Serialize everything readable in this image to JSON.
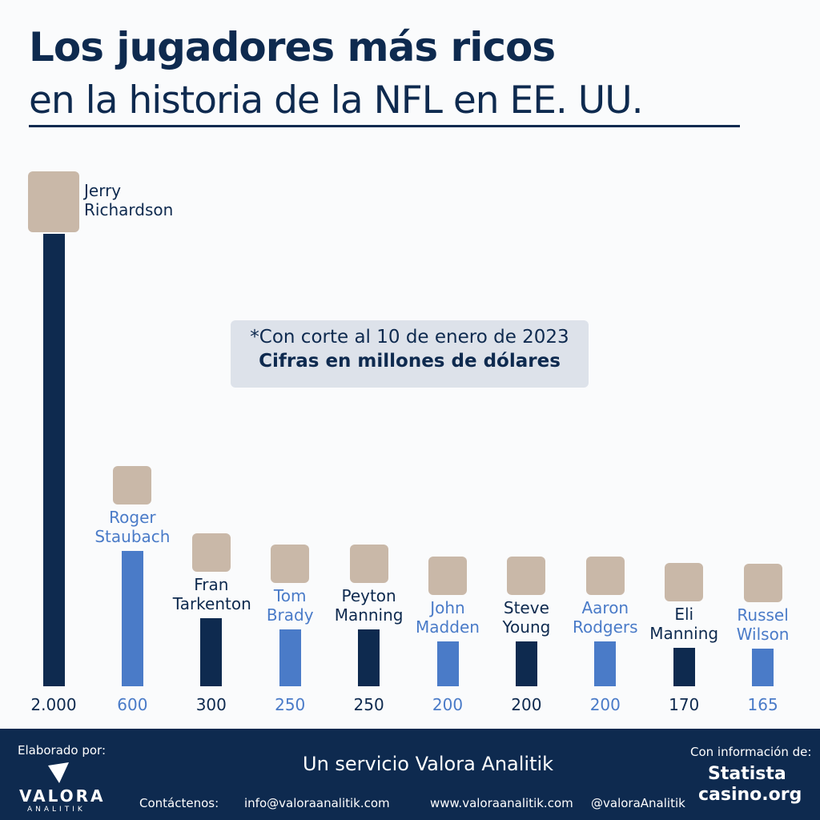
{
  "chart_data": {
    "type": "bar",
    "title": "Los jugadores más ricos",
    "subtitle": "en la historia de la NFL en EE. UU.",
    "notes": [
      "*Con corte al 10 de enero de 2023",
      "Cifras en millones de dólares"
    ],
    "categories": [
      "Jerry Richardson",
      "Roger Staubach",
      "Fran Tarkenton",
      "Tom Brady",
      "Peyton Manning",
      "John Madden",
      "Steve Young",
      "Aaron Rodgers",
      "Eli Manning",
      "Russel Wilson"
    ],
    "values": [
      2000,
      600,
      300,
      250,
      250,
      200,
      200,
      200,
      170,
      165
    ],
    "value_labels": [
      "2.000",
      "600",
      "300",
      "250",
      "250",
      "200",
      "200",
      "200",
      "170",
      "165"
    ],
    "colors": [
      "#0e2a4f",
      "#4a7bc8",
      "#0e2a4f",
      "#4a7bc8",
      "#0e2a4f",
      "#4a7bc8",
      "#0e2a4f",
      "#4a7bc8",
      "#0e2a4f",
      "#4a7bc8"
    ],
    "ylim": [
      0,
      2000
    ]
  },
  "footer": {
    "made_by": "Elaborado por:",
    "logo": "VALORA",
    "logo_sub": "ANALITIK",
    "service": "Un servicio Valora Analitik",
    "contact": "Contáctenos:",
    "email": "info@valoraanalitik.com",
    "web": "www.valoraanalitik.com",
    "twitter": "@valoraAnalitik",
    "source_label": "Con información de:",
    "sources": [
      "Statista",
      "casino.org"
    ]
  }
}
